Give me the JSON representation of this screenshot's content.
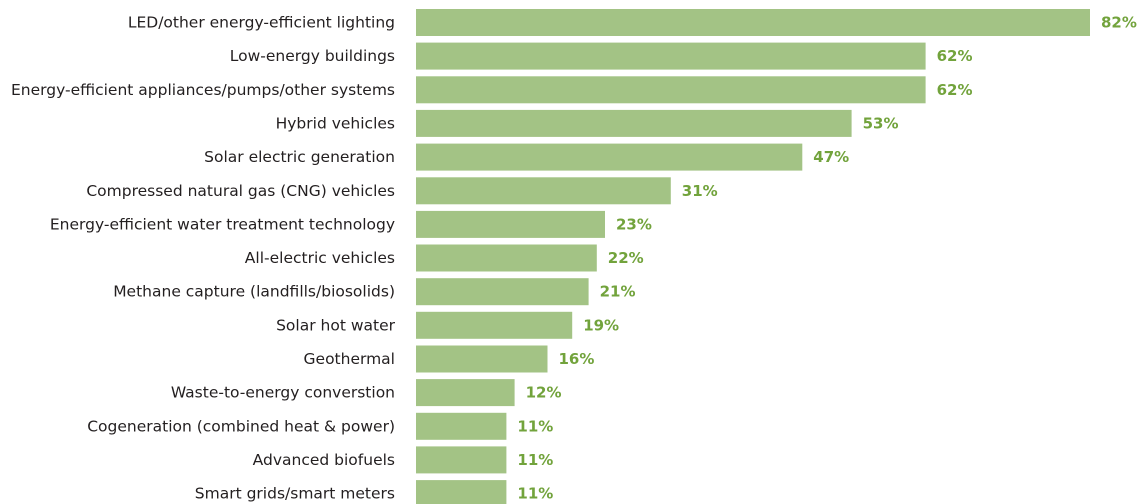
{
  "chart_data": {
    "type": "bar",
    "orientation": "horizontal",
    "title": "",
    "xlabel": "",
    "ylabel": "",
    "grid": false,
    "xlim": [
      0,
      82
    ],
    "value_suffix": "%",
    "colors": {
      "bar": "#a3c385",
      "value_label": "#72a33c",
      "category_label": "#231f20"
    },
    "categories": [
      "LED/other energy-efficient lighting",
      "Low-energy buildings",
      "Energy-efficient appliances/pumps/other systems",
      "Hybrid vehicles",
      "Solar electric generation",
      "Compressed natural gas (CNG) vehicles",
      "Energy-efficient water treatment technology",
      "All-electric vehicles",
      "Methane capture (landfills/biosolids)",
      "Solar hot water",
      "Geothermal",
      "Waste-to-energy converstion",
      "Cogeneration (combined heat & power)",
      "Advanced biofuels",
      "Smart grids/smart meters"
    ],
    "values": [
      82,
      62,
      62,
      53,
      47,
      31,
      23,
      22,
      21,
      19,
      16,
      12,
      11,
      11,
      11
    ],
    "value_labels": [
      "82%",
      "62%",
      "62%",
      "53%",
      "47%",
      "31%",
      "23%",
      "22%",
      "21%",
      "19%",
      "16%",
      "12%",
      "11%",
      "11%",
      "11%"
    ]
  }
}
